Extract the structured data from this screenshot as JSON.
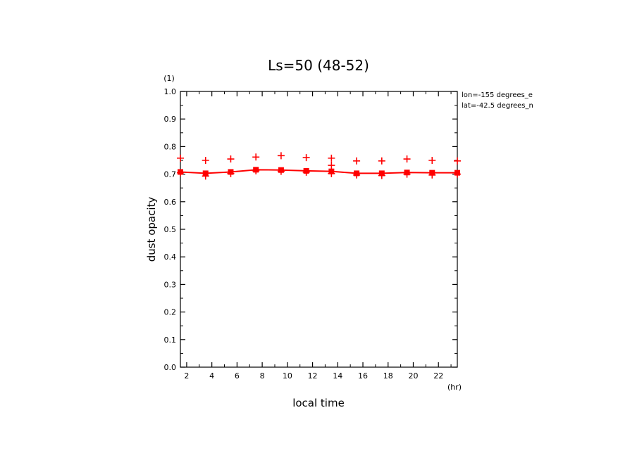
{
  "chart_data": {
    "type": "line",
    "title": "Ls=50 (48-52)",
    "xlabel": "local time",
    "xunit": "(hr)",
    "ylabel": "dust opacity",
    "yunit": "(1)",
    "annotations": [
      "lon=-155 degrees_e",
      "lat=-42.5 degrees_n"
    ],
    "xlim": [
      1.5,
      23.5
    ],
    "ylim": [
      0.0,
      1.0
    ],
    "xticks": [
      "2",
      "4",
      "6",
      "8",
      "10",
      "12",
      "14",
      "16",
      "18",
      "20",
      "22"
    ],
    "yticks": [
      "0.0",
      "0.1",
      "0.2",
      "0.3",
      "0.4",
      "0.5",
      "0.6",
      "0.7",
      "0.8",
      "0.9",
      "1.0"
    ],
    "x": [
      1.5,
      3.5,
      5.5,
      7.5,
      9.5,
      11.5,
      13.5,
      15.5,
      17.5,
      19.5,
      21.5,
      23.5
    ],
    "series": [
      {
        "marker": "square",
        "line": true,
        "values": [
          0.708,
          0.703,
          0.708,
          0.716,
          0.715,
          0.712,
          0.71,
          0.703,
          0.703,
          0.706,
          0.705,
          0.705
        ]
      },
      {
        "marker": "plus",
        "values": [
          0.758,
          0.75,
          0.755,
          0.762,
          0.767,
          0.76,
          0.758,
          0.748,
          0.748,
          0.755,
          0.75,
          0.748
        ]
      },
      {
        "marker": "plus",
        "values": [
          0.705,
          0.693,
          0.702,
          0.712,
          0.71,
          0.707,
          0.702,
          0.697,
          0.695,
          0.7,
          0.697,
          0.7
        ]
      },
      {
        "marker": "plus",
        "x": [
          13.5
        ],
        "values": [
          0.732
        ]
      }
    ],
    "colors": {
      "series": "#ff0000",
      "axes": "#000000"
    }
  }
}
